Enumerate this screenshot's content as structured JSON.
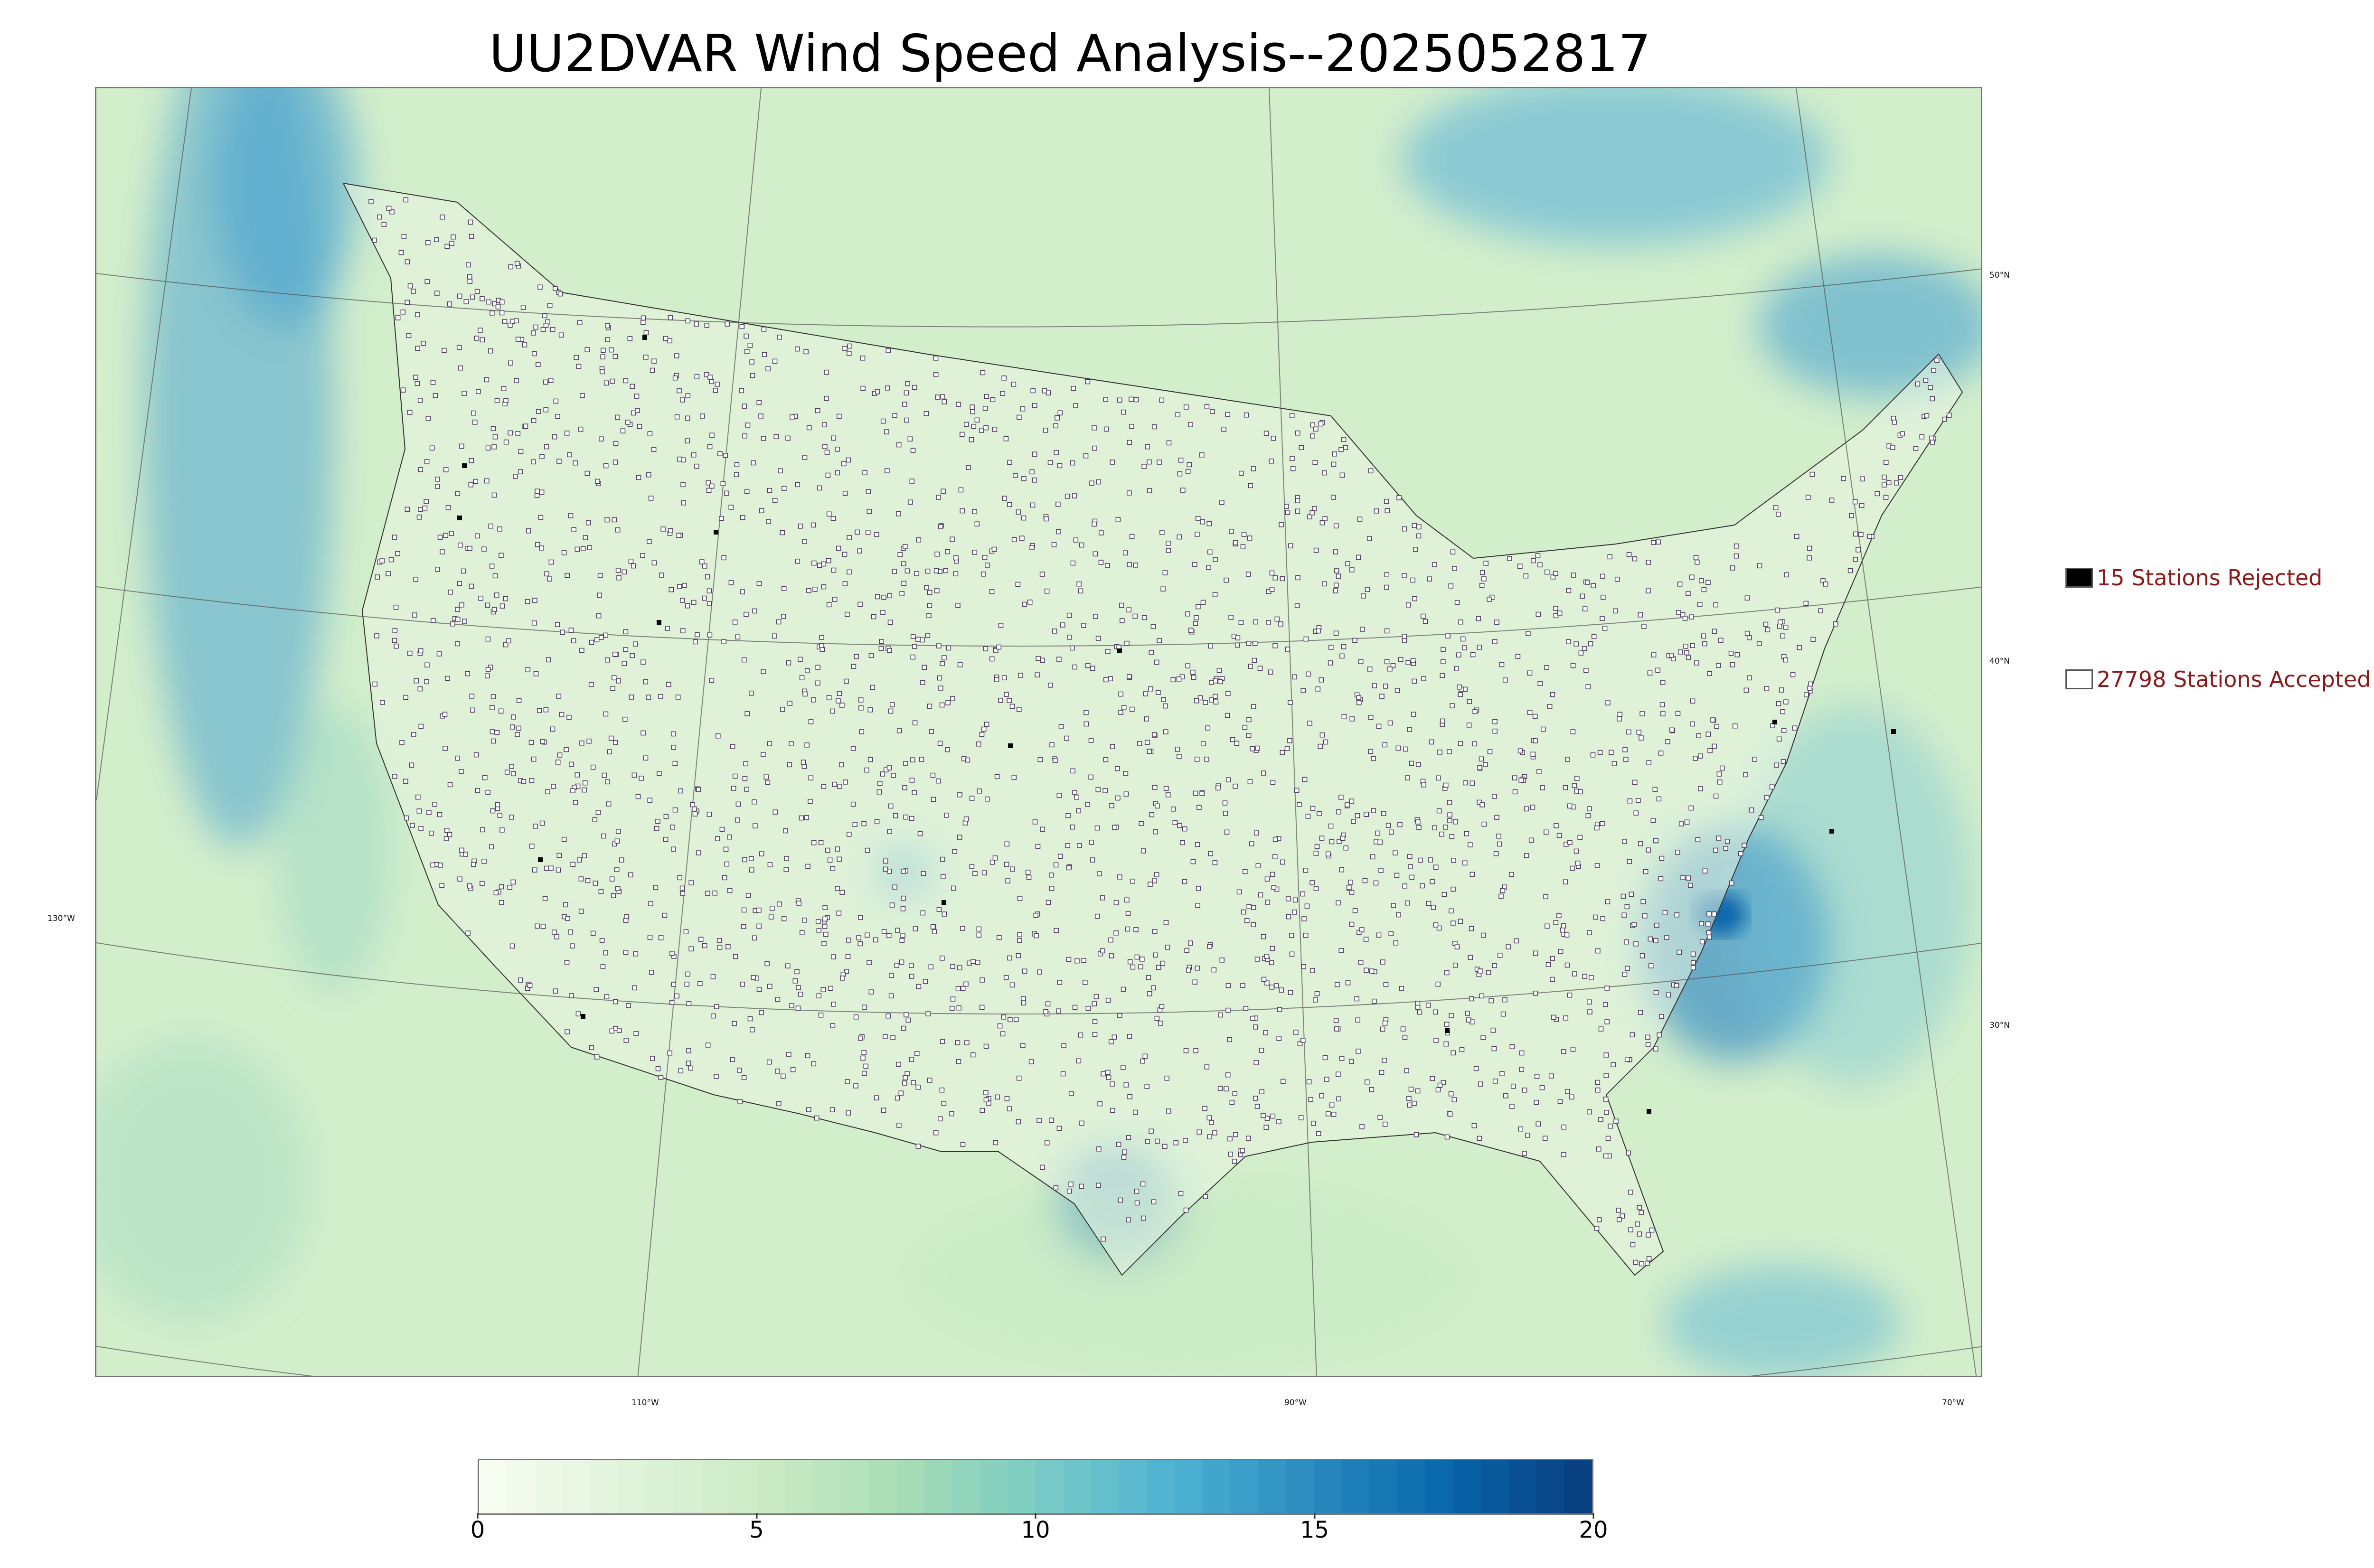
{
  "title": "UU2DVAR Wind Speed Analysis--2025052817",
  "legend": {
    "rejected_label": "15 Stations Rejected",
    "accepted_label": "27798 Stations Accepted"
  },
  "graticule": {
    "latitude_labels": [
      "50°N",
      "40°N",
      "30°N"
    ],
    "longitude_labels": [
      "130°W",
      "110°W",
      "90°W",
      "70°W"
    ]
  },
  "colorbar": {
    "ticks": [
      "0",
      "5",
      "10",
      "15",
      "20"
    ],
    "min": 0,
    "max": 20,
    "colors": [
      "#f7fcf0",
      "#e0f3db",
      "#ccebc5",
      "#a8ddb5",
      "#7bccc4",
      "#4eb3d3",
      "#2b8cbe",
      "#0868ac",
      "#084081"
    ]
  },
  "colors": {
    "ocean_calm": "#d4efcf",
    "ocean_windy": "#4aa3d0",
    "land": "#e6f5e0",
    "accepted_station_fill": "#ffffff",
    "rejected_station_fill": "#000000",
    "legend_text": "#8b1a1a"
  }
}
